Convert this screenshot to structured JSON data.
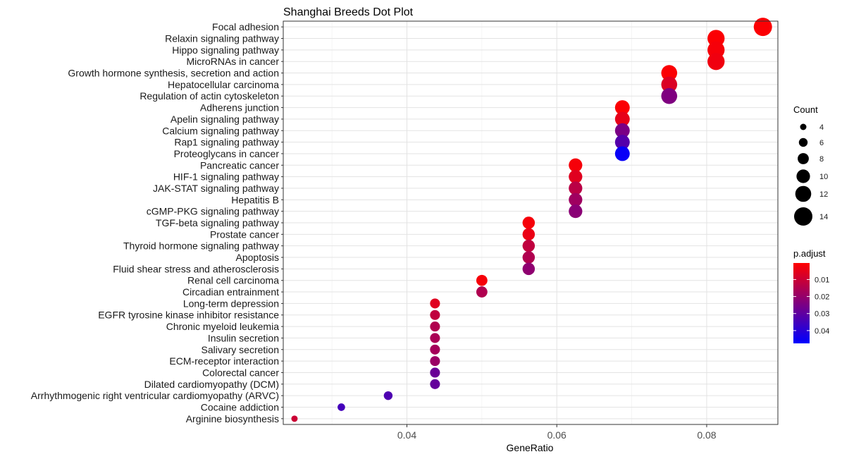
{
  "chart_data": {
    "type": "scatter",
    "title": "Shanghai Breeds Dot Plot",
    "xlabel": "GeneRatio",
    "ylabel": "",
    "xlim": [
      0.0235,
      0.0895
    ],
    "x_ticks": [
      {
        "value": 0.04,
        "label": "0.04"
      },
      {
        "value": 0.06,
        "label": "0.06"
      },
      {
        "value": 0.08,
        "label": "0.08"
      }
    ],
    "grid": true,
    "categories": [
      "Focal adhesion",
      "Relaxin signaling pathway",
      "Hippo signaling pathway",
      "MicroRNAs in cancer",
      "Growth hormone synthesis, secretion and action",
      "Hepatocellular carcinoma",
      "Regulation of actin cytoskeleton",
      "Adherens junction",
      "Apelin signaling pathway",
      "Calcium signaling pathway",
      "Rap1 signaling pathway",
      "Proteoglycans in cancer",
      "Pancreatic cancer",
      "HIF-1 signaling pathway",
      "JAK-STAT signaling pathway",
      "Hepatitis B",
      "cGMP-PKG signaling pathway",
      "TGF-beta signaling pathway",
      "Prostate cancer",
      "Thyroid hormone signaling pathway",
      "Apoptosis",
      "Fluid shear stress and atherosclerosis",
      "Renal cell carcinoma",
      "Circadian entrainment",
      "Long-term depression",
      "EGFR tyrosine kinase inhibitor resistance",
      "Chronic myeloid leukemia",
      "Insulin secretion",
      "Salivary secretion",
      "ECM-receptor interaction",
      "Colorectal cancer",
      "Dilated cardiomyopathy (DCM)",
      "Arrhythmogenic right ventricular cardiomyopathy (ARVC)",
      "Cocaine addiction",
      "Arginine biosynthesis"
    ],
    "points": [
      {
        "term": "Focal adhesion",
        "x": 0.0875,
        "count": 14,
        "p_adjust": 0.001
      },
      {
        "term": "Relaxin signaling pathway",
        "x": 0.08125,
        "count": 13,
        "p_adjust": 0.001
      },
      {
        "term": "Hippo signaling pathway",
        "x": 0.08125,
        "count": 13,
        "p_adjust": 0.002
      },
      {
        "term": "MicroRNAs in cancer",
        "x": 0.08125,
        "count": 13,
        "p_adjust": 0.003
      },
      {
        "term": "Growth hormone synthesis, secretion and action",
        "x": 0.075,
        "count": 12,
        "p_adjust": 0.001
      },
      {
        "term": "Hepatocellular carcinoma",
        "x": 0.075,
        "count": 12,
        "p_adjust": 0.007
      },
      {
        "term": "Regulation of actin cytoskeleton",
        "x": 0.075,
        "count": 12,
        "p_adjust": 0.024
      },
      {
        "term": "Adherens junction",
        "x": 0.06875,
        "count": 11,
        "p_adjust": 0.001
      },
      {
        "term": "Apelin signaling pathway",
        "x": 0.06875,
        "count": 11,
        "p_adjust": 0.005
      },
      {
        "term": "Calcium signaling pathway",
        "x": 0.06875,
        "count": 11,
        "p_adjust": 0.025
      },
      {
        "term": "Rap1 signaling pathway",
        "x": 0.06875,
        "count": 11,
        "p_adjust": 0.032
      },
      {
        "term": "Proteoglycans in cancer",
        "x": 0.06875,
        "count": 11,
        "p_adjust": 0.046
      },
      {
        "term": "Pancreatic cancer",
        "x": 0.0625,
        "count": 10,
        "p_adjust": 0.002
      },
      {
        "term": "HIF-1 signaling pathway",
        "x": 0.0625,
        "count": 10,
        "p_adjust": 0.006
      },
      {
        "term": "JAK-STAT signaling pathway",
        "x": 0.0625,
        "count": 10,
        "p_adjust": 0.013
      },
      {
        "term": "Hepatitis B",
        "x": 0.0625,
        "count": 10,
        "p_adjust": 0.018
      },
      {
        "term": "cGMP-PKG signaling pathway",
        "x": 0.0625,
        "count": 10,
        "p_adjust": 0.022
      },
      {
        "term": "TGF-beta signaling pathway",
        "x": 0.05625,
        "count": 9,
        "p_adjust": 0.002
      },
      {
        "term": "Prostate cancer",
        "x": 0.05625,
        "count": 9,
        "p_adjust": 0.004
      },
      {
        "term": "Thyroid hormone signaling pathway",
        "x": 0.05625,
        "count": 9,
        "p_adjust": 0.012
      },
      {
        "term": "Apoptosis",
        "x": 0.05625,
        "count": 9,
        "p_adjust": 0.015
      },
      {
        "term": "Fluid shear stress and atherosclerosis",
        "x": 0.05625,
        "count": 9,
        "p_adjust": 0.021
      },
      {
        "term": "Renal cell carcinoma",
        "x": 0.05,
        "count": 8,
        "p_adjust": 0.002
      },
      {
        "term": "Circadian entrainment",
        "x": 0.05,
        "count": 8,
        "p_adjust": 0.015
      },
      {
        "term": "Long-term depression",
        "x": 0.04375,
        "count": 7,
        "p_adjust": 0.006
      },
      {
        "term": "EGFR tyrosine kinase inhibitor resistance",
        "x": 0.04375,
        "count": 7,
        "p_adjust": 0.012
      },
      {
        "term": "Chronic myeloid leukemia",
        "x": 0.04375,
        "count": 7,
        "p_adjust": 0.015
      },
      {
        "term": "Insulin secretion",
        "x": 0.04375,
        "count": 7,
        "p_adjust": 0.016
      },
      {
        "term": "Salivary secretion",
        "x": 0.04375,
        "count": 7,
        "p_adjust": 0.017
      },
      {
        "term": "ECM-receptor interaction",
        "x": 0.04375,
        "count": 7,
        "p_adjust": 0.019
      },
      {
        "term": "Colorectal cancer",
        "x": 0.04375,
        "count": 7,
        "p_adjust": 0.028
      },
      {
        "term": "Dilated cardiomyopathy (DCM)",
        "x": 0.04375,
        "count": 7,
        "p_adjust": 0.029
      },
      {
        "term": "Arrhythmogenic right ventricular cardiomyopathy (ARVC)",
        "x": 0.0375,
        "count": 6,
        "p_adjust": 0.033
      },
      {
        "term": "Cocaine addiction",
        "x": 0.03125,
        "count": 5,
        "p_adjust": 0.035
      },
      {
        "term": "Arginine biosynthesis",
        "x": 0.025,
        "count": 4,
        "p_adjust": 0.01
      }
    ],
    "size_legend": {
      "title": "Count",
      "entries": [
        {
          "value": 4,
          "label": "4"
        },
        {
          "value": 6,
          "label": "6"
        },
        {
          "value": 8,
          "label": "8"
        },
        {
          "value": 10,
          "label": "10"
        },
        {
          "value": 12,
          "label": "12"
        },
        {
          "value": 14,
          "label": "14"
        }
      ]
    },
    "color_legend": {
      "title": "p.adjust",
      "range": [
        0.0003,
        0.0475
      ],
      "low_color": "#ff0000",
      "high_color": "#0000ff",
      "ticks": [
        {
          "value": 0.01,
          "label": "0.01"
        },
        {
          "value": 0.02,
          "label": "0.02"
        },
        {
          "value": 0.03,
          "label": "0.03"
        },
        {
          "value": 0.04,
          "label": "0.04"
        }
      ]
    },
    "legend_position": "right"
  }
}
